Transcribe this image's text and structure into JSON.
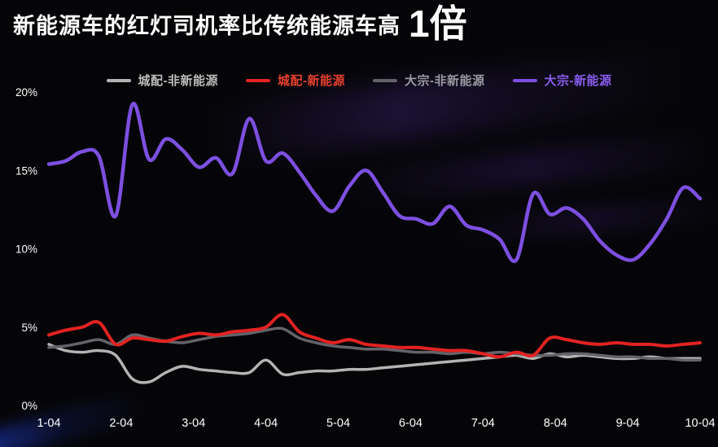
{
  "title": {
    "text": "新能源车的红灯司机率比传统能源车高",
    "highlight": "1倍"
  },
  "colors": {
    "background": "#050508",
    "text": "#ffffff",
    "accent_purple": "#7d4fe0",
    "accent_red": "#e32222"
  },
  "chart_data": {
    "type": "line",
    "title": "新能源车的红灯司机率比传统能源车高 1倍",
    "xlabel": "",
    "ylabel": "",
    "ylim": [
      0,
      20
    ],
    "grid": false,
    "legend_position": "top",
    "x_ticks": [
      "1-04",
      "2-04",
      "3-04",
      "4-04",
      "5-04",
      "6-04",
      "7-04",
      "8-04",
      "9-04",
      "10-04"
    ],
    "y_ticks": [
      "0%",
      "5%",
      "10%",
      "15%",
      "20%"
    ],
    "y_tick_values": [
      0,
      5,
      10,
      15,
      20
    ],
    "series": [
      {
        "name": "城配-非新能源",
        "color": "#b3b3b3",
        "label_color": "#bdbdbd",
        "values": [
          3.9,
          3.5,
          3.4,
          3.5,
          3.2,
          1.7,
          1.5,
          2.1,
          2.5,
          2.3,
          2.2,
          2.1,
          2.1,
          2.9,
          2.0,
          2.1,
          2.2,
          2.2,
          2.3,
          2.3,
          2.4,
          2.5,
          2.6,
          2.7,
          2.8,
          2.9,
          3.0,
          3.1,
          3.2,
          3.0,
          3.3,
          3.1,
          3.2,
          3.1,
          3.0,
          3.0,
          3.1,
          3.0,
          3.0,
          3.0
        ]
      },
      {
        "name": "城配-新能源",
        "color": "#e32222",
        "label_color": "#e8402f",
        "values": [
          4.5,
          4.8,
          5.0,
          5.3,
          3.9,
          4.3,
          4.2,
          4.1,
          4.4,
          4.6,
          4.5,
          4.7,
          4.8,
          5.0,
          5.8,
          4.7,
          4.3,
          4.0,
          4.2,
          3.9,
          3.8,
          3.7,
          3.7,
          3.6,
          3.5,
          3.5,
          3.3,
          3.1,
          3.4,
          3.2,
          4.3,
          4.2,
          4.0,
          3.9,
          4.0,
          3.9,
          3.9,
          3.8,
          3.9,
          4.0
        ]
      },
      {
        "name": "大宗-非新能源",
        "color": "#63636a",
        "label_color": "#9a9aa2",
        "values": [
          3.7,
          3.8,
          4.0,
          4.2,
          3.9,
          4.5,
          4.3,
          4.1,
          4.0,
          4.2,
          4.4,
          4.5,
          4.6,
          4.8,
          4.9,
          4.3,
          4.0,
          3.8,
          3.7,
          3.6,
          3.6,
          3.5,
          3.4,
          3.4,
          3.3,
          3.4,
          3.3,
          3.4,
          3.3,
          3.2,
          3.2,
          3.3,
          3.3,
          3.2,
          3.1,
          3.1,
          3.0,
          3.0,
          2.9,
          2.9
        ]
      },
      {
        "name": "大宗-新能源",
        "color": "#7d4fe0",
        "label_color": "#8a5cf0",
        "values": [
          15.4,
          15.6,
          16.2,
          15.9,
          12.1,
          19.2,
          15.7,
          17.0,
          16.3,
          15.2,
          15.8,
          14.8,
          18.3,
          15.6,
          16.1,
          14.9,
          13.4,
          12.4,
          14.0,
          15.0,
          13.6,
          12.1,
          11.9,
          11.6,
          12.7,
          11.5,
          11.2,
          10.6,
          9.3,
          13.5,
          12.2,
          12.6,
          11.9,
          10.5,
          9.6,
          9.3,
          10.3,
          11.9,
          13.9,
          13.2
        ]
      }
    ]
  }
}
